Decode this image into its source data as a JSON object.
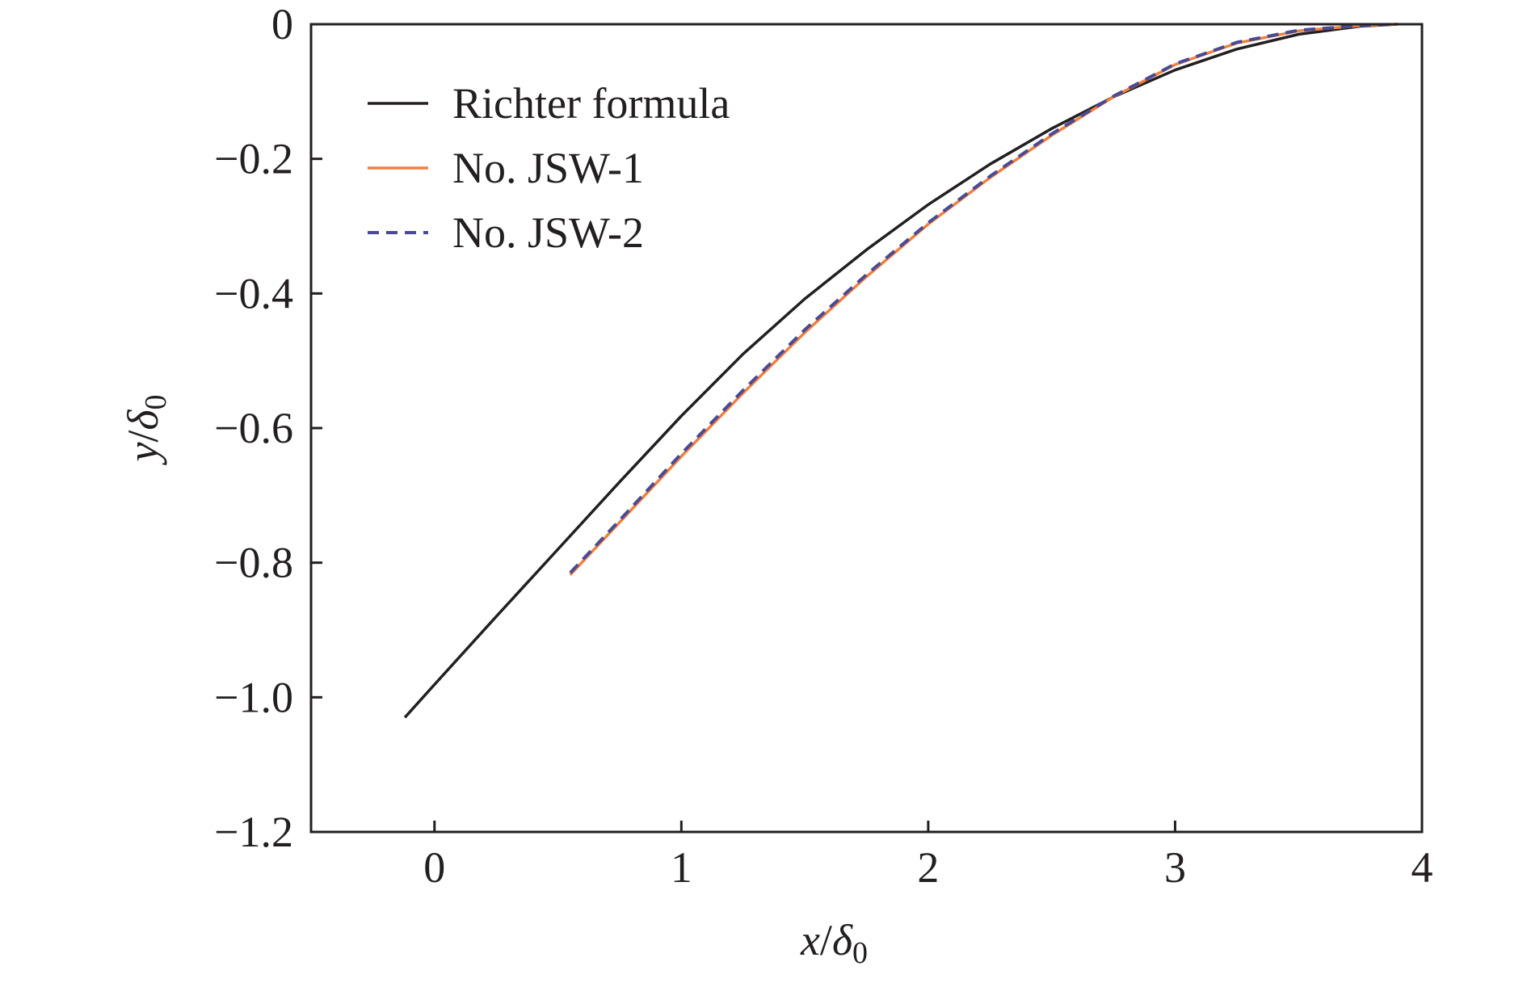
{
  "chart_data": {
    "type": "line",
    "xlabel": {
      "var": "x",
      "sep": "/",
      "delta": "δ",
      "sub": "0"
    },
    "ylabel": {
      "var": "y",
      "sep": "/",
      "delta": "δ",
      "sub": "0"
    },
    "xlim": [
      -0.5,
      4
    ],
    "ylim": [
      -1.2,
      0
    ],
    "xticks": [
      0,
      1,
      2,
      3,
      4
    ],
    "xtick_labels": [
      "0",
      "1",
      "2",
      "3",
      "4"
    ],
    "yticks": [
      0,
      -0.2,
      -0.4,
      -0.6,
      -0.8,
      -1.0,
      -1.2
    ],
    "ytick_labels": [
      "0",
      "−0.2",
      "−0.4",
      "−0.6",
      "−0.8",
      "−1.0",
      "−1.2"
    ],
    "grid": false,
    "legend_position": "top-left",
    "series": [
      {
        "name": "Richter formula",
        "color": "#231f20",
        "style": "solid",
        "x": [
          -0.12,
          0.0,
          0.25,
          0.5,
          0.75,
          1.0,
          1.25,
          1.5,
          1.75,
          2.0,
          2.25,
          2.5,
          2.75,
          3.0,
          3.25,
          3.5,
          3.75,
          3.9
        ],
        "y": [
          -1.03,
          -0.981,
          -0.88,
          -0.78,
          -0.68,
          -0.582,
          -0.49,
          -0.408,
          -0.335,
          -0.268,
          -0.208,
          -0.155,
          -0.108,
          -0.068,
          -0.037,
          -0.015,
          -0.003,
          0.0
        ]
      },
      {
        "name": "No. JSW-1",
        "color": "#f08040",
        "style": "solid",
        "x": [
          0.55,
          0.75,
          1.0,
          1.25,
          1.5,
          1.75,
          2.0,
          2.25,
          2.5,
          2.75,
          3.0,
          3.25,
          3.5,
          3.75,
          3.9
        ],
        "y": [
          -0.818,
          -0.74,
          -0.642,
          -0.548,
          -0.458,
          -0.375,
          -0.297,
          -0.228,
          -0.165,
          -0.108,
          -0.06,
          -0.028,
          -0.01,
          -0.002,
          0.0
        ]
      },
      {
        "name": "No. JSW-2",
        "color": "#4a4a94",
        "style": "dashed",
        "x": [
          0.55,
          0.75,
          1.0,
          1.25,
          1.5,
          1.75,
          2.0,
          2.25,
          2.5,
          2.75,
          3.0,
          3.25,
          3.5,
          3.75,
          3.9
        ],
        "y": [
          -0.815,
          -0.737,
          -0.638,
          -0.544,
          -0.454,
          -0.372,
          -0.295,
          -0.226,
          -0.163,
          -0.107,
          -0.059,
          -0.027,
          -0.009,
          -0.002,
          0.0
        ]
      }
    ]
  }
}
